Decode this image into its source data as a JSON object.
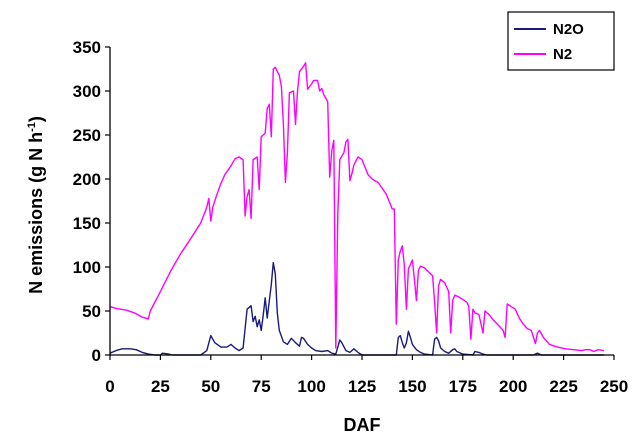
{
  "chart_data": {
    "type": "line",
    "title": "",
    "xlabel": "DAF",
    "ylabel": "N emissions (g N h",
    "ylabel_sup": "-1",
    "ylabel_close": ")",
    "xlim": [
      0,
      250
    ],
    "ylim": [
      0,
      350
    ],
    "x_ticks": [
      "0",
      "25",
      "50",
      "75",
      "100",
      "125",
      "150",
      "175",
      "200",
      "225",
      "250"
    ],
    "y_ticks": [
      "0",
      "50",
      "100",
      "150",
      "200",
      "250",
      "300",
      "350"
    ],
    "grid": false,
    "legend_position": "top-right",
    "series": [
      {
        "name": "N2O",
        "color": "#1a1a7a",
        "points": [
          [
            0,
            2
          ],
          [
            3,
            5
          ],
          [
            6,
            7
          ],
          [
            10,
            7
          ],
          [
            13,
            6
          ],
          [
            16,
            3
          ],
          [
            19,
            1
          ],
          [
            22,
            0
          ],
          [
            25,
            0
          ],
          [
            26,
            2
          ],
          [
            29,
            1
          ],
          [
            31,
            0
          ],
          [
            45,
            0
          ],
          [
            48,
            5
          ],
          [
            50,
            22
          ],
          [
            52,
            14
          ],
          [
            55,
            9
          ],
          [
            58,
            9
          ],
          [
            60,
            12
          ],
          [
            62,
            8
          ],
          [
            64,
            5
          ],
          [
            66,
            8
          ],
          [
            67,
            30
          ],
          [
            68,
            52
          ],
          [
            70,
            56
          ],
          [
            71,
            38
          ],
          [
            72,
            44
          ],
          [
            73,
            32
          ],
          [
            74,
            40
          ],
          [
            75,
            28
          ],
          [
            76,
            45
          ],
          [
            77,
            65
          ],
          [
            78,
            42
          ],
          [
            80,
            80
          ],
          [
            81,
            105
          ],
          [
            82,
            92
          ],
          [
            83,
            48
          ],
          [
            84,
            28
          ],
          [
            86,
            15
          ],
          [
            88,
            12
          ],
          [
            90,
            19
          ],
          [
            92,
            14
          ],
          [
            94,
            10
          ],
          [
            95,
            20
          ],
          [
            96,
            19
          ],
          [
            98,
            12
          ],
          [
            100,
            8
          ],
          [
            102,
            5
          ],
          [
            105,
            4
          ],
          [
            108,
            5
          ],
          [
            110,
            2
          ],
          [
            112,
            1
          ],
          [
            113,
            9
          ],
          [
            114,
            17
          ],
          [
            115,
            14
          ],
          [
            117,
            5
          ],
          [
            119,
            3
          ],
          [
            121,
            7
          ],
          [
            123,
            3
          ],
          [
            125,
            0
          ],
          [
            142,
            0
          ],
          [
            143,
            20
          ],
          [
            144,
            22
          ],
          [
            145,
            14
          ],
          [
            146,
            8
          ],
          [
            147,
            14
          ],
          [
            148,
            27
          ],
          [
            149,
            20
          ],
          [
            150,
            12
          ],
          [
            152,
            6
          ],
          [
            154,
            3
          ],
          [
            156,
            1
          ],
          [
            160,
            0
          ],
          [
            161,
            18
          ],
          [
            162,
            20
          ],
          [
            163,
            16
          ],
          [
            164,
            8
          ],
          [
            166,
            4
          ],
          [
            168,
            2
          ],
          [
            170,
            6
          ],
          [
            171,
            7
          ],
          [
            172,
            4
          ],
          [
            175,
            1
          ],
          [
            180,
            0
          ],
          [
            181,
            4
          ],
          [
            183,
            3
          ],
          [
            185,
            1
          ],
          [
            187,
            0
          ],
          [
            210,
            0
          ],
          [
            212,
            2
          ],
          [
            214,
            0
          ],
          [
            245,
            0
          ]
        ]
      },
      {
        "name": "N2",
        "color": "#ff00ff",
        "points": [
          [
            0,
            55
          ],
          [
            3,
            53
          ],
          [
            8,
            51
          ],
          [
            12,
            48
          ],
          [
            16,
            43
          ],
          [
            19,
            41
          ],
          [
            20,
            50
          ],
          [
            25,
            72
          ],
          [
            30,
            95
          ],
          [
            35,
            115
          ],
          [
            40,
            132
          ],
          [
            45,
            150
          ],
          [
            48,
            168
          ],
          [
            49,
            178
          ],
          [
            50,
            152
          ],
          [
            51,
            168
          ],
          [
            53,
            182
          ],
          [
            55,
            195
          ],
          [
            57,
            205
          ],
          [
            60,
            215
          ],
          [
            62,
            223
          ],
          [
            64,
            225
          ],
          [
            66,
            222
          ],
          [
            67,
            158
          ],
          [
            68,
            180
          ],
          [
            69,
            188
          ],
          [
            70,
            155
          ],
          [
            71,
            222
          ],
          [
            73,
            225
          ],
          [
            74,
            188
          ],
          [
            75,
            248
          ],
          [
            76,
            250
          ],
          [
            77,
            252
          ],
          [
            78,
            280
          ],
          [
            79,
            285
          ],
          [
            80,
            248
          ],
          [
            81,
            325
          ],
          [
            82,
            327
          ],
          [
            83,
            322
          ],
          [
            84,
            318
          ],
          [
            85,
            305
          ],
          [
            86,
            262
          ],
          [
            87,
            196
          ],
          [
            88,
            230
          ],
          [
            89,
            298
          ],
          [
            91,
            300
          ],
          [
            92,
            262
          ],
          [
            93,
            300
          ],
          [
            94,
            322
          ],
          [
            96,
            328
          ],
          [
            97,
            332
          ],
          [
            98,
            302
          ],
          [
            100,
            308
          ],
          [
            101,
            312
          ],
          [
            103,
            312
          ],
          [
            104,
            300
          ],
          [
            105,
            303
          ],
          [
            106,
            296
          ],
          [
            108,
            288
          ],
          [
            109,
            202
          ],
          [
            110,
            232
          ],
          [
            111,
            244
          ],
          [
            112,
            8
          ],
          [
            113,
            160
          ],
          [
            114,
            222
          ],
          [
            116,
            230
          ],
          [
            117,
            242
          ],
          [
            118,
            245
          ],
          [
            119,
            198
          ],
          [
            120,
            206
          ],
          [
            121,
            216
          ],
          [
            123,
            225
          ],
          [
            125,
            222
          ],
          [
            128,
            205
          ],
          [
            130,
            200
          ],
          [
            133,
            196
          ],
          [
            137,
            183
          ],
          [
            140,
            166
          ],
          [
            141,
            166
          ],
          [
            142,
            35
          ],
          [
            143,
            108
          ],
          [
            144,
            118
          ],
          [
            145,
            124
          ],
          [
            146,
            102
          ],
          [
            147,
            52
          ],
          [
            148,
            98
          ],
          [
            150,
            108
          ],
          [
            151,
            86
          ],
          [
            152,
            62
          ],
          [
            153,
            96
          ],
          [
            154,
            101
          ],
          [
            156,
            99
          ],
          [
            160,
            90
          ],
          [
            161,
            60
          ],
          [
            162,
            25
          ],
          [
            163,
            79
          ],
          [
            164,
            86
          ],
          [
            166,
            82
          ],
          [
            168,
            72
          ],
          [
            169,
            25
          ],
          [
            170,
            62
          ],
          [
            171,
            68
          ],
          [
            173,
            66
          ],
          [
            177,
            60
          ],
          [
            178,
            55
          ],
          [
            179,
            18
          ],
          [
            180,
            52
          ],
          [
            181,
            48
          ],
          [
            183,
            46
          ],
          [
            185,
            25
          ],
          [
            186,
            50
          ],
          [
            188,
            46
          ],
          [
            190,
            40
          ],
          [
            193,
            33
          ],
          [
            195,
            28
          ],
          [
            196,
            20
          ],
          [
            197,
            58
          ],
          [
            199,
            55
          ],
          [
            201,
            52
          ],
          [
            203,
            42
          ],
          [
            205,
            35
          ],
          [
            207,
            30
          ],
          [
            209,
            28
          ],
          [
            211,
            13
          ],
          [
            212,
            25
          ],
          [
            213,
            28
          ],
          [
            215,
            20
          ],
          [
            218,
            12
          ],
          [
            222,
            9
          ],
          [
            226,
            7
          ],
          [
            230,
            6
          ],
          [
            234,
            5
          ],
          [
            236,
            6
          ],
          [
            238,
            6
          ],
          [
            240,
            4
          ],
          [
            242,
            6
          ],
          [
            245,
            5
          ]
        ]
      }
    ]
  }
}
